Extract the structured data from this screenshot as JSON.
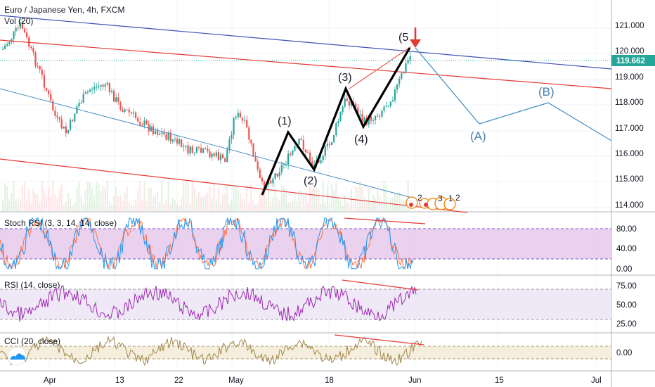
{
  "header": {
    "symbol_title": "Euro / Japanese Yen, 4h, FXCM",
    "volume_label": "Vol (20)"
  },
  "main_pane": {
    "price_ticks": [
      "121.000",
      "120.000",
      "119.000",
      "118.000",
      "117.000",
      "116.000",
      "115.000",
      "114.000"
    ],
    "last_price": "119.662",
    "last_price_color": "#26a69a",
    "wave_labels": {
      "w1": "(1)",
      "w2": "(2)",
      "w3": "(3)",
      "w4": "(4)",
      "w5": "(5",
      "wa": "(A)",
      "wb": "(B)"
    },
    "event_badges": [
      "2",
      "3",
      "1",
      "2"
    ]
  },
  "stoch_pane": {
    "label": "Stoch RSI (3, 3, 14, 14, close)",
    "ticks": [
      "80.00",
      "40.00",
      "0.00"
    ]
  },
  "rsi_pane": {
    "label": "RSI (14, close)",
    "ticks": [
      "75.00",
      "50.00",
      "25.00"
    ]
  },
  "cci_pane": {
    "label": "CCI (20, close)",
    "ticks": [
      "0.00"
    ]
  },
  "time_axis": {
    "labels": [
      "Apr",
      "13",
      "22",
      "May",
      "18",
      "Jun",
      "15",
      "Jul"
    ]
  },
  "colors": {
    "bull": "#26a69a",
    "bear": "#ef5350",
    "red_line": "#e53935",
    "blue_line": "#3f51b5",
    "light_blue": "#4a90c2",
    "stoch_k": "#2196f3",
    "stoch_d": "#ff7043",
    "rsi_line": "#9c27b0",
    "cci_line": "#a0884a"
  }
}
